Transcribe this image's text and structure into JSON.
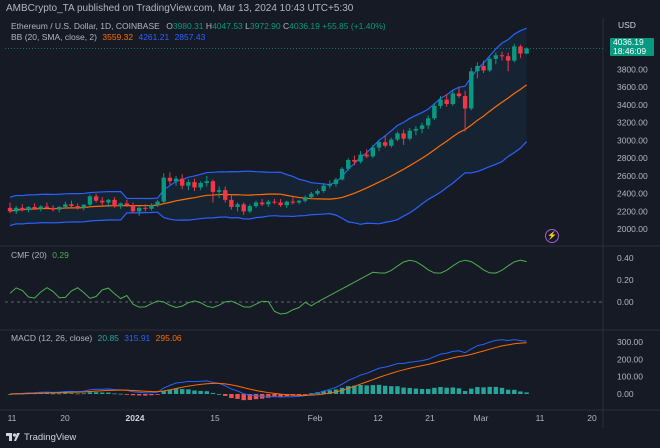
{
  "header": {
    "publisher": "AMBCrypto_TA published on TradingView.com, Mar 13, 2024 10:43 UTC+5:30"
  },
  "currency": "USD",
  "legend_main": {
    "symbol": "Ethereum / U.S. Dollar, 1D, COINBASE",
    "open_label": "O",
    "open": "3980.31",
    "high_label": "H",
    "high": "4047.53",
    "low_label": "L",
    "low": "3972.90",
    "close_label": "C",
    "close": "4036.19",
    "change": "+55.85 (+1.40%)"
  },
  "legend_bb": {
    "label": "BB (20, SMA, close, 2)",
    "basis": "3559.32",
    "upper": "4261.21",
    "lower": "2857.43"
  },
  "legend_cmf": {
    "label": "CMF (20)",
    "value": "0.29"
  },
  "legend_macd": {
    "label": "MACD (12, 26, close)",
    "hist": "20.85",
    "macd": "315.91",
    "signal": "295.06"
  },
  "price_badge": {
    "price": "4036.19",
    "countdown": "18:46:09"
  },
  "price_axis": [
    "3800.00",
    "3600.00",
    "3400.00",
    "3200.00",
    "3000.00",
    "2800.00",
    "2600.00",
    "2400.00",
    "2200.00",
    "2000.00"
  ],
  "cmf_axis": [
    "0.40",
    "0.20",
    "0.00"
  ],
  "macd_axis": [
    "300.00",
    "200.00",
    "100.00",
    "0.00"
  ],
  "time_axis": [
    "11",
    "20",
    "2024",
    "15",
    "Feb",
    "12",
    "21",
    "Mar",
    "11",
    "20"
  ],
  "footer": {
    "brand": "TradingView"
  },
  "colors": {
    "up": "#089981",
    "down": "#f23645",
    "bb_basis": "#ff6d00",
    "bb_band": "#2962ff",
    "cmf": "#4caf50",
    "macd_line": "#2962ff",
    "signal_line": "#ff6d00"
  },
  "chart_data": {
    "type": "candlestick",
    "ylim": [
      1900,
      4200
    ],
    "candles": [
      [
        2240,
        2300,
        2180,
        2200
      ],
      [
        2200,
        2260,
        2170,
        2240
      ],
      [
        2240,
        2280,
        2200,
        2215
      ],
      [
        2215,
        2260,
        2190,
        2250
      ],
      [
        2250,
        2290,
        2220,
        2230
      ],
      [
        2230,
        2270,
        2200,
        2255
      ],
      [
        2255,
        2300,
        2230,
        2240
      ],
      [
        2240,
        2270,
        2200,
        2220
      ],
      [
        2220,
        2260,
        2190,
        2250
      ],
      [
        2250,
        2310,
        2230,
        2280
      ],
      [
        2280,
        2320,
        2240,
        2260
      ],
      [
        2260,
        2290,
        2220,
        2240
      ],
      [
        2240,
        2280,
        2210,
        2275
      ],
      [
        2275,
        2390,
        2260,
        2370
      ],
      [
        2370,
        2400,
        2300,
        2320
      ],
      [
        2320,
        2360,
        2270,
        2300
      ],
      [
        2300,
        2340,
        2250,
        2330
      ],
      [
        2330,
        2360,
        2240,
        2260
      ],
      [
        2260,
        2300,
        2230,
        2290
      ],
      [
        2290,
        2330,
        2250,
        2270
      ],
      [
        2270,
        2300,
        2180,
        2200
      ],
      [
        2200,
        2260,
        2150,
        2240
      ],
      [
        2240,
        2280,
        2200,
        2230
      ],
      [
        2230,
        2290,
        2210,
        2270
      ],
      [
        2270,
        2330,
        2250,
        2310
      ],
      [
        2310,
        2630,
        2290,
        2580
      ],
      [
        2580,
        2640,
        2500,
        2540
      ],
      [
        2540,
        2600,
        2490,
        2570
      ],
      [
        2570,
        2620,
        2450,
        2490
      ],
      [
        2490,
        2560,
        2440,
        2530
      ],
      [
        2530,
        2570,
        2430,
        2470
      ],
      [
        2470,
        2540,
        2440,
        2520
      ],
      [
        2520,
        2600,
        2480,
        2540
      ],
      [
        2540,
        2560,
        2300,
        2420
      ],
      [
        2420,
        2480,
        2350,
        2440
      ],
      [
        2440,
        2480,
        2300,
        2330
      ],
      [
        2330,
        2380,
        2220,
        2250
      ],
      [
        2250,
        2300,
        2200,
        2280
      ],
      [
        2280,
        2300,
        2160,
        2200
      ],
      [
        2200,
        2280,
        2180,
        2260
      ],
      [
        2260,
        2320,
        2240,
        2300
      ],
      [
        2300,
        2340,
        2260,
        2280
      ],
      [
        2280,
        2330,
        2250,
        2310
      ],
      [
        2310,
        2340,
        2280,
        2300
      ],
      [
        2300,
        2340,
        2250,
        2270
      ],
      [
        2270,
        2320,
        2240,
        2310
      ],
      [
        2310,
        2360,
        2280,
        2300
      ],
      [
        2300,
        2330,
        2280,
        2320
      ],
      [
        2320,
        2380,
        2300,
        2360
      ],
      [
        2360,
        2420,
        2340,
        2400
      ],
      [
        2400,
        2450,
        2380,
        2430
      ],
      [
        2430,
        2520,
        2410,
        2490
      ],
      [
        2490,
        2550,
        2460,
        2510
      ],
      [
        2510,
        2580,
        2480,
        2560
      ],
      [
        2560,
        2700,
        2550,
        2680
      ],
      [
        2680,
        2800,
        2660,
        2780
      ],
      [
        2780,
        2830,
        2720,
        2760
      ],
      [
        2760,
        2880,
        2740,
        2840
      ],
      [
        2840,
        2900,
        2800,
        2820
      ],
      [
        2820,
        2950,
        2800,
        2920
      ],
      [
        2920,
        3000,
        2880,
        2980
      ],
      [
        2980,
        3050,
        2920,
        2940
      ],
      [
        2940,
        3030,
        2920,
        3010
      ],
      [
        3010,
        3100,
        2990,
        3080
      ],
      [
        3080,
        3120,
        2950,
        3020
      ],
      [
        3020,
        3140,
        3000,
        3110
      ],
      [
        3110,
        3160,
        3060,
        3130
      ],
      [
        3130,
        3200,
        3080,
        3170
      ],
      [
        3170,
        3280,
        3130,
        3250
      ],
      [
        3250,
        3420,
        3230,
        3390
      ],
      [
        3390,
        3500,
        3360,
        3460
      ],
      [
        3460,
        3520,
        3380,
        3410
      ],
      [
        3410,
        3560,
        3390,
        3530
      ],
      [
        3530,
        3600,
        3480,
        3500
      ],
      [
        3500,
        3560,
        3100,
        3360
      ],
      [
        3360,
        3820,
        3340,
        3780
      ],
      [
        3780,
        3880,
        3700,
        3840
      ],
      [
        3840,
        3900,
        3760,
        3790
      ],
      [
        3790,
        3940,
        3770,
        3920
      ],
      [
        3920,
        3990,
        3860,
        3960
      ],
      [
        3960,
        4000,
        3900,
        3950
      ],
      [
        3950,
        3990,
        3780,
        3900
      ],
      [
        3900,
        4090,
        3880,
        4060
      ],
      [
        4060,
        4080,
        3930,
        3980
      ],
      [
        3980,
        4047.53,
        3972.9,
        4036.19
      ]
    ]
  }
}
